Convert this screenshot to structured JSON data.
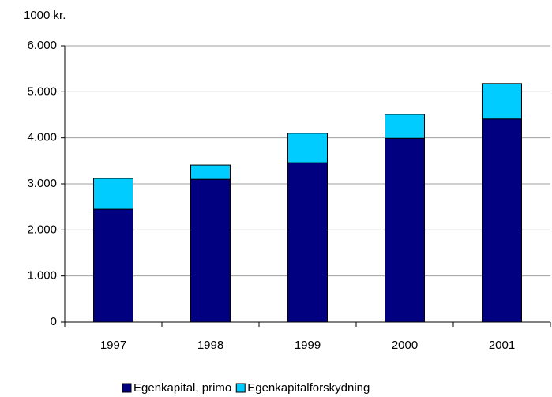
{
  "chart_data": {
    "type": "stacked_bar",
    "y_axis_label": "1000 kr.",
    "categories": [
      "1997",
      "1998",
      "1999",
      "2000",
      "2001"
    ],
    "series": [
      {
        "name": "Egenkapital, primo",
        "color": "#000080",
        "values": [
          2450,
          3100,
          3460,
          3990,
          4410
        ]
      },
      {
        "name": "Egenkapitalforskydning",
        "color": "#00ccff",
        "values": [
          670,
          310,
          640,
          520,
          770
        ]
      }
    ],
    "ylim": [
      0,
      6000
    ],
    "yticks": [
      0,
      {
        "value": 1000,
        "label": "1.000"
      },
      {
        "value": 2000,
        "label": "2.000"
      },
      {
        "value": 3000,
        "label": "3.000"
      },
      {
        "value": 4000,
        "label": "4.000"
      },
      {
        "value": 5000,
        "label": "5.000"
      },
      {
        "value": 6000,
        "label": "6.000"
      }
    ],
    "grid": true,
    "legend": "bottom"
  }
}
